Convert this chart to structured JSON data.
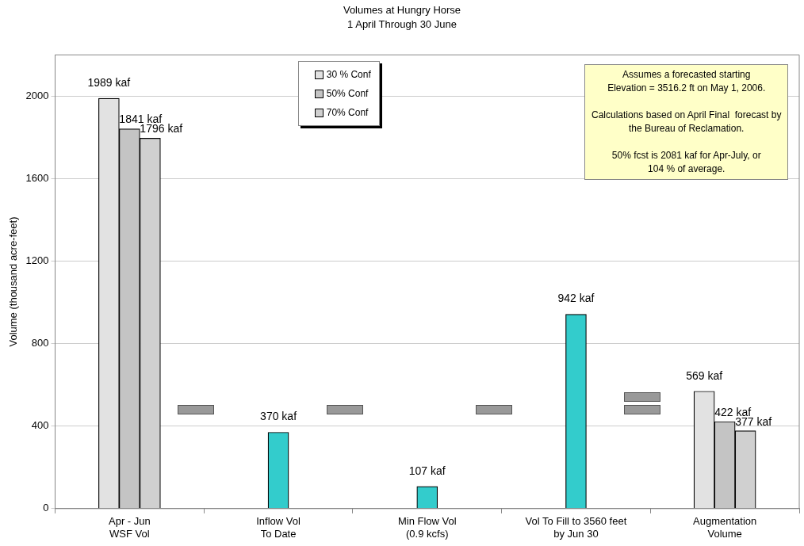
{
  "chart_data": {
    "type": "bar",
    "title": "Volumes at Hungry Horse",
    "subtitle": "1 April Through 30 June",
    "ylabel": "Volume (thousand acre-feet)",
    "categories": [
      "Apr - Jun\nWSF Vol",
      "Inflow Vol\nTo Date",
      "Min Flow Vol\n(0.9 kcfs)",
      "Vol To Fill to 3560 feet\nby Jun 30",
      "Augmentation\nVolume"
    ],
    "series": [
      {
        "name": "30 % Conf",
        "color": "#e2e2e2",
        "values": [
          1989,
          null,
          null,
          null,
          569
        ],
        "value_labels": [
          "1989 kaf",
          null,
          null,
          null,
          "569 kaf"
        ]
      },
      {
        "name": "50% Conf",
        "color": "#c4c4c4",
        "values": [
          1841,
          null,
          null,
          null,
          422
        ],
        "value_labels": [
          "1841 kaf",
          null,
          null,
          null,
          "422 kaf"
        ]
      },
      {
        "name": "70% Conf",
        "color": "#d0d0d0",
        "values": [
          1796,
          null,
          null,
          null,
          377
        ],
        "value_labels": [
          "1796 kaf",
          null,
          null,
          null,
          "377 kaf"
        ]
      },
      {
        "color": "#33cccc",
        "values": [
          null,
          370,
          107,
          942,
          null
        ],
        "value_labels": [
          null,
          "370 kaf",
          "107 kaf",
          "942 kaf",
          null
        ]
      }
    ],
    "ylim": [
      0,
      2200
    ],
    "yticks": [
      0,
      400,
      800,
      1200,
      1600,
      2000
    ],
    "grid": "y",
    "legend": "top",
    "annotations": [
      "Assumes a forecasted starting\nElevation = 3516.2 ft on May 1, 2006.\n\nCalculations based on April Final  forecast by\nthe Bureau of Reclamation.\n\n50% fcst is 2081 kaf for Apr-July, or\n104 % of average."
    ]
  }
}
